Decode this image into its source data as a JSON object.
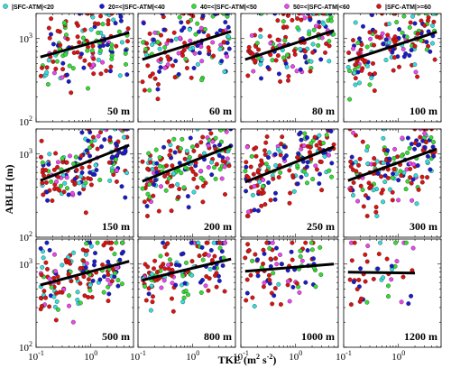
{
  "chart_data": {
    "type": "scatter",
    "xscale": "log",
    "yscale": "log",
    "xlim": [
      0.1,
      6
    ],
    "ylim": [
      100,
      2000
    ],
    "xlabel": "TKE (m",
    "xlabel_sup": "2",
    "xlabel_mid": " s",
    "xlabel_sup2": "-2",
    "xlabel_end": ")",
    "ylabel": "ABLH (m)",
    "xticks": [
      {
        "value": 0.1,
        "base": "10",
        "exp": "-1"
      },
      {
        "value": 1,
        "base": "10",
        "exp": "0"
      }
    ],
    "yticks": [
      {
        "value": 100,
        "base": "10",
        "exp": "2"
      },
      {
        "value": 1000,
        "base": "10",
        "exp": "3"
      }
    ],
    "legend": [
      {
        "label": "|SFC-ATM|<20",
        "color": "#33dddd"
      },
      {
        "label": "20=<|SFC-ATM|<40",
        "color": "#1a1acc"
      },
      {
        "label": "40=<|SFC-ATM|<50",
        "color": "#33dd33"
      },
      {
        "label": "50=<|SFC-ATM|<60",
        "color": "#ee44ee"
      },
      {
        "label": "|SFC-ATM|>=60",
        "color": "#dd1111"
      }
    ],
    "panels": [
      {
        "label": "50 m",
        "fit": [
          [
            0.12,
            600
          ],
          [
            5,
            1180
          ]
        ],
        "n": 150,
        "xr": [
          0.12,
          5
        ],
        "yr": [
          150,
          2000
        ]
      },
      {
        "label": "60 m",
        "fit": [
          [
            0.12,
            560
          ],
          [
            5,
            1220
          ]
        ],
        "n": 150,
        "xr": [
          0.12,
          5
        ],
        "yr": [
          170,
          2000
        ]
      },
      {
        "label": "80 m",
        "fit": [
          [
            0.12,
            560
          ],
          [
            5,
            1250
          ]
        ],
        "n": 150,
        "xr": [
          0.12,
          5
        ],
        "yr": [
          170,
          2000
        ]
      },
      {
        "label": "100 m",
        "fit": [
          [
            0.12,
            540
          ],
          [
            5,
            1200
          ]
        ],
        "n": 150,
        "xr": [
          0.12,
          5
        ],
        "yr": [
          170,
          2000
        ]
      },
      {
        "label": "150 m",
        "fit": [
          [
            0.12,
            480
          ],
          [
            5,
            1280
          ]
        ],
        "n": 170,
        "xr": [
          0.12,
          5
        ],
        "yr": [
          180,
          2000
        ]
      },
      {
        "label": "200 m",
        "fit": [
          [
            0.12,
            470
          ],
          [
            5,
            1250
          ]
        ],
        "n": 170,
        "xr": [
          0.12,
          5
        ],
        "yr": [
          180,
          2000
        ]
      },
      {
        "label": "250 m",
        "fit": [
          [
            0.12,
            460
          ],
          [
            5,
            1220
          ]
        ],
        "n": 170,
        "xr": [
          0.12,
          5
        ],
        "yr": [
          180,
          2000
        ]
      },
      {
        "label": "300 m",
        "fit": [
          [
            0.12,
            480
          ],
          [
            5,
            1150
          ]
        ],
        "n": 170,
        "xr": [
          0.12,
          5
        ],
        "yr": [
          180,
          2000
        ]
      },
      {
        "label": "500 m",
        "fit": [
          [
            0.12,
            560
          ],
          [
            5,
            1080
          ]
        ],
        "n": 160,
        "xr": [
          0.12,
          4
        ],
        "yr": [
          200,
          1800
        ]
      },
      {
        "label": "800 m",
        "fit": [
          [
            0.12,
            640
          ],
          [
            5,
            1150
          ]
        ],
        "n": 140,
        "xr": [
          0.12,
          4
        ],
        "yr": [
          200,
          1800
        ]
      },
      {
        "label": "1000 m",
        "fit": [
          [
            0.12,
            820
          ],
          [
            5,
            1000
          ]
        ],
        "n": 90,
        "xr": [
          0.12,
          3
        ],
        "yr": [
          200,
          1800
        ]
      },
      {
        "label": "1200 m",
        "fit": [
          [
            0.12,
            800
          ],
          [
            2,
            780
          ]
        ],
        "n": 45,
        "xr": [
          0.13,
          2
        ],
        "yr": [
          200,
          1800
        ]
      }
    ]
  }
}
